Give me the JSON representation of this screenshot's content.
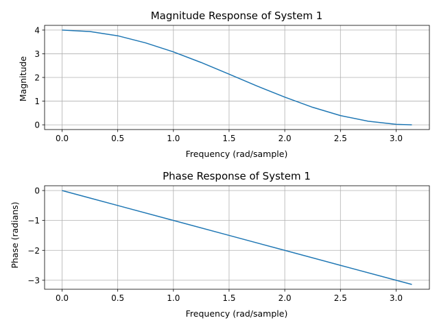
{
  "chart_data": [
    {
      "type": "line",
      "title": "Magnitude Response of System 1",
      "xlabel": "Frequency (rad/sample)",
      "ylabel": "Magnitude",
      "xlim": [
        -0.157,
        3.299
      ],
      "ylim": [
        -0.2,
        4.2
      ],
      "xticks": [
        0.0,
        0.5,
        1.0,
        1.5,
        2.0,
        2.5,
        3.0
      ],
      "xtick_labels": [
        "0.0",
        "0.5",
        "1.0",
        "1.5",
        "2.0",
        "2.5",
        "3.0"
      ],
      "yticks": [
        0,
        1,
        2,
        3,
        4
      ],
      "ytick_labels": [
        "0",
        "1",
        "2",
        "3",
        "4"
      ],
      "grid": true,
      "series": [
        {
          "color": "#1f77b4",
          "x": [
            0.0,
            0.25,
            0.5,
            0.75,
            1.0,
            1.25,
            1.5,
            1.75,
            2.0,
            2.25,
            2.5,
            2.75,
            3.0,
            3.1416
          ],
          "y": [
            4.0,
            3.94,
            3.76,
            3.46,
            3.08,
            2.63,
            2.14,
            1.64,
            1.17,
            0.74,
            0.39,
            0.15,
            0.02,
            0.0
          ]
        }
      ]
    },
    {
      "type": "line",
      "title": "Phase Response of System 1",
      "xlabel": "Frequency (rad/sample)",
      "ylabel": "Phase (radians)",
      "xlim": [
        -0.157,
        3.299
      ],
      "ylim": [
        -3.3,
        0.16
      ],
      "xticks": [
        0.0,
        0.5,
        1.0,
        1.5,
        2.0,
        2.5,
        3.0
      ],
      "xtick_labels": [
        "0.0",
        "0.5",
        "1.0",
        "1.5",
        "2.0",
        "2.5",
        "3.0"
      ],
      "yticks": [
        0,
        -1,
        -2,
        -3
      ],
      "ytick_labels": [
        "0",
        "−1",
        "−2",
        "−3"
      ],
      "grid": true,
      "series": [
        {
          "color": "#1f77b4",
          "x": [
            0.0,
            0.5,
            1.0,
            1.5,
            2.0,
            2.5,
            3.0,
            3.1416
          ],
          "y": [
            0.0,
            -0.5,
            -1.0,
            -1.5,
            -2.0,
            -2.5,
            -3.0,
            -3.14
          ]
        }
      ]
    }
  ]
}
